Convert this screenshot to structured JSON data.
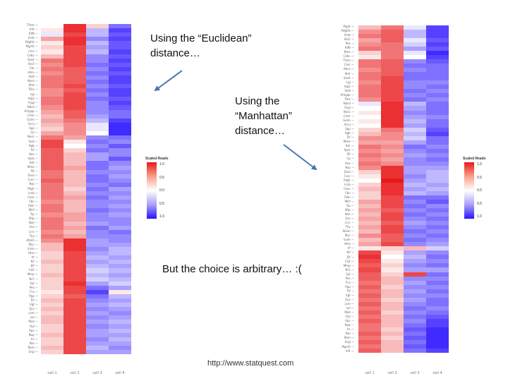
{
  "annotations": {
    "euclidean_line1": "Using the “Euclidean”",
    "euclidean_line2": "distance…",
    "manhattan_line1": "Using the",
    "manhattan_line2": "“Manhattan”",
    "manhattan_line3": "distance…",
    "arbitrary": "But the choice is arbitrary… :("
  },
  "source_url": "http://www.statquest.com",
  "legend": {
    "title": "Scaled Reads",
    "ticks": [
      "1.0",
      "0.5",
      "0.0",
      "0.5",
      "1.0"
    ]
  },
  "colors": {
    "high": "#e8191b",
    "mid": "#ffffff",
    "low": "#2a12ff"
  },
  "heatmaps": [
    {
      "name": "euclidean-heatmap",
      "column_labels": [
        "cell 1",
        "cell 2",
        "cell 3",
        "cell 4"
      ],
      "row_labels": [
        "Tfam",
        "Irf4",
        "Klf8",
        "Arsb",
        "Pdgfrb",
        "Mgst3",
        "Cmc",
        "Cdkn",
        "Sox4",
        "Bcl3",
        "Cbr",
        "Hmx",
        "Slc8",
        "Abca",
        "Wnt",
        "Tshz",
        "Lgi",
        "Alg3",
        "Pygl",
        "Hbcd",
        "Arhgap",
        "Cmtr",
        "Golm",
        "Kcnj",
        "Spp",
        "Cp",
        "Nesc",
        "Slc8",
        "Itgb",
        "Tcf",
        "Hox",
        "Aptx",
        "Kdr",
        "Mme",
        "Pif",
        "Dnal",
        "Cxcr",
        "Nrp",
        "Ptgfr",
        "Lmb",
        "Ceac",
        "Fbn",
        "Fbln",
        "Mtrf",
        "Trp",
        "Sftp",
        "Nxe",
        "Gss",
        "Lrrc",
        "Thy",
        "Ablim",
        "Myc",
        "Icam",
        "Htra",
        "Irf",
        "Kif",
        "Elf",
        "Cd2",
        "Mmp",
        "Nr1",
        "Syt",
        "Pex",
        "Tns",
        "Ppp",
        "Tcf",
        "Vgf",
        "Zyx",
        "Lsm",
        "Lpl",
        "Mxd",
        "Rpl",
        "Apc",
        "Nup",
        "Irs",
        "Pax",
        "Rbm",
        "Ergi"
      ],
      "matrix": [
        [
          0.0,
          0.9,
          0.2,
          -0.6
        ],
        [
          0.1,
          0.9,
          -0.3,
          -0.8
        ],
        [
          -0.1,
          0.8,
          -0.3,
          -0.7
        ],
        [
          0.4,
          0.9,
          -0.5,
          -0.8
        ],
        [
          0.1,
          0.9,
          -0.3,
          -0.7
        ],
        [
          0.2,
          0.8,
          -0.4,
          -0.7
        ],
        [
          0.1,
          0.8,
          -0.3,
          -0.8
        ],
        [
          0.3,
          0.8,
          -0.5,
          -0.7
        ],
        [
          0.6,
          0.8,
          -0.5,
          -0.8
        ],
        [
          0.5,
          0.8,
          -0.6,
          -0.7
        ],
        [
          0.6,
          0.7,
          -0.5,
          -0.8
        ],
        [
          0.5,
          0.7,
          -0.6,
          -0.7
        ],
        [
          0.6,
          0.7,
          -0.5,
          -0.8
        ],
        [
          0.6,
          0.7,
          -0.6,
          -0.8
        ],
        [
          0.6,
          0.8,
          -0.5,
          -0.7
        ],
        [
          0.5,
          0.7,
          -0.6,
          -0.8
        ],
        [
          0.5,
          0.8,
          -0.5,
          -0.8
        ],
        [
          0.6,
          0.8,
          -0.6,
          -0.7
        ],
        [
          0.6,
          0.8,
          -0.5,
          -0.8
        ],
        [
          0.5,
          0.8,
          -0.5,
          -0.7
        ],
        [
          0.4,
          0.7,
          -0.5,
          -0.6
        ],
        [
          0.3,
          0.7,
          -0.4,
          -0.6
        ],
        [
          0.4,
          0.6,
          -0.3,
          -0.8
        ],
        [
          0.3,
          0.5,
          -0.1,
          -0.9
        ],
        [
          0.2,
          0.5,
          -0.1,
          -0.9
        ],
        [
          0.4,
          0.5,
          0.0,
          -0.9
        ],
        [
          0.6,
          0.4,
          -0.5,
          -0.6
        ],
        [
          0.8,
          0.1,
          -0.6,
          -0.5
        ],
        [
          0.8,
          0.0,
          -0.5,
          -0.7
        ],
        [
          0.7,
          0.2,
          -0.6,
          -0.5
        ],
        [
          0.7,
          0.3,
          -0.4,
          -0.5
        ],
        [
          0.7,
          0.3,
          -0.4,
          -0.7
        ],
        [
          0.7,
          0.3,
          -0.6,
          -0.5
        ],
        [
          0.7,
          0.4,
          -0.6,
          -0.4
        ],
        [
          0.6,
          0.3,
          -0.5,
          -0.5
        ],
        [
          0.6,
          0.3,
          -0.6,
          -0.4
        ],
        [
          0.7,
          0.3,
          -0.6,
          -0.5
        ],
        [
          0.6,
          0.3,
          -0.5,
          -0.6
        ],
        [
          0.6,
          0.2,
          -0.6,
          -0.4
        ],
        [
          0.6,
          0.3,
          -0.5,
          -0.5
        ],
        [
          0.6,
          0.4,
          -0.6,
          -0.4
        ],
        [
          0.5,
          0.3,
          -0.5,
          -0.5
        ],
        [
          0.6,
          0.3,
          -0.5,
          -0.4
        ],
        [
          0.6,
          0.3,
          -0.6,
          -0.5
        ],
        [
          0.5,
          0.4,
          -0.5,
          -0.4
        ],
        [
          0.6,
          0.4,
          -0.5,
          -0.5
        ],
        [
          0.6,
          0.3,
          -0.4,
          -0.5
        ],
        [
          0.6,
          0.4,
          -0.6,
          -0.4
        ],
        [
          0.5,
          0.3,
          -0.5,
          -0.6
        ],
        [
          0.6,
          0.4,
          -0.5,
          -0.5
        ],
        [
          0.5,
          0.9,
          -0.4,
          -0.5
        ],
        [
          0.3,
          0.9,
          -0.4,
          -0.4
        ],
        [
          0.3,
          0.9,
          -0.5,
          -0.3
        ],
        [
          0.2,
          0.8,
          -0.4,
          -0.3
        ],
        [
          0.2,
          0.8,
          -0.3,
          -0.4
        ],
        [
          0.3,
          0.8,
          -0.4,
          -0.3
        ],
        [
          0.2,
          0.8,
          -0.3,
          -0.4
        ],
        [
          0.2,
          0.8,
          -0.2,
          -0.3
        ],
        [
          0.3,
          0.8,
          -0.3,
          -0.4
        ],
        [
          0.2,
          0.8,
          -0.2,
          -0.3
        ],
        [
          0.2,
          0.9,
          -0.4,
          -0.2
        ],
        [
          0.2,
          0.8,
          -0.6,
          -0.4
        ],
        [
          0.1,
          0.8,
          -0.8,
          0.1
        ],
        [
          0.2,
          0.7,
          -0.6,
          -0.3
        ],
        [
          0.3,
          0.8,
          -0.5,
          -0.4
        ],
        [
          0.2,
          0.8,
          -0.4,
          -0.3
        ],
        [
          0.3,
          0.8,
          -0.5,
          -0.4
        ],
        [
          0.2,
          0.8,
          -0.4,
          -0.5
        ],
        [
          0.3,
          0.8,
          -0.5,
          -0.4
        ],
        [
          0.3,
          0.8,
          -0.4,
          -0.3
        ],
        [
          0.2,
          0.8,
          -0.5,
          -0.4
        ],
        [
          0.2,
          0.8,
          -0.4,
          -0.3
        ],
        [
          0.3,
          0.8,
          -0.4,
          -0.4
        ],
        [
          0.2,
          0.8,
          -0.5,
          -0.3
        ],
        [
          0.2,
          0.8,
          -0.4,
          -0.4
        ],
        [
          0.3,
          0.8,
          -0.3,
          -0.5
        ],
        [
          0.2,
          0.8,
          -0.4,
          -0.4
        ]
      ]
    },
    {
      "name": "manhattan-heatmap",
      "column_labels": [
        "cell 1",
        "cell 2",
        "cell 3",
        "cell 4"
      ],
      "row_labels": [
        "Plgrb",
        "Pdgfrb",
        "Arsb",
        "Bcl2",
        "Pex",
        "Klf8",
        "Nmx",
        "Cdkn",
        "Tfam",
        "Cmc",
        "Abca",
        "Wnt",
        "Sox4",
        "Lgi",
        "Alg3",
        "Slc8",
        "Arhgap",
        "Tshz",
        "Hbcd",
        "Pygl",
        "Nesc",
        "Cmtr",
        "Golm",
        "Kcnj",
        "Spp",
        "Itgb",
        "Tcf",
        "Mme",
        "Kdr",
        "Aptx",
        "Pif",
        "Cp",
        "Hox",
        "Nrp",
        "Dnal",
        "Cxcr",
        "Ptgfr",
        "Lmb",
        "Ceac",
        "Fbn",
        "Fbln",
        "Mtrf",
        "Trp",
        "Sftp",
        "Nxe",
        "Gss",
        "Lrrc",
        "Thy",
        "Ablim",
        "Myc",
        "Icam",
        "Htra",
        "Irf",
        "Kif",
        "Elf",
        "Cd2",
        "Mmp",
        "Nr1",
        "Syt",
        "Pex",
        "Tns",
        "Ppp",
        "Tcf",
        "Vgf",
        "Zyx",
        "Lsm",
        "Lpl",
        "Mxd",
        "Rpl",
        "Apc",
        "Nup",
        "Irs",
        "Pax",
        "Rbm",
        "Ergi",
        "Mgst3",
        "Irf4"
      ],
      "matrix": [
        [
          0.3,
          0.6,
          -0.1,
          -0.8
        ],
        [
          0.5,
          0.7,
          -0.3,
          -0.8
        ],
        [
          0.6,
          0.7,
          -0.3,
          -0.8
        ],
        [
          0.4,
          0.7,
          -0.1,
          -0.7
        ],
        [
          0.5,
          0.6,
          -0.2,
          -0.8
        ],
        [
          0.6,
          0.6,
          -0.4,
          -0.7
        ],
        [
          0.2,
          0.6,
          -0.1,
          -0.9
        ],
        [
          0.1,
          0.6,
          0.0,
          -0.8
        ],
        [
          0.6,
          0.7,
          -0.5,
          -0.7
        ],
        [
          0.6,
          0.7,
          -0.6,
          -0.6
        ],
        [
          0.5,
          0.7,
          -0.5,
          -0.6
        ],
        [
          0.6,
          0.7,
          -0.6,
          -0.6
        ],
        [
          0.6,
          0.8,
          -0.6,
          -0.6
        ],
        [
          0.5,
          0.8,
          -0.5,
          -0.5
        ],
        [
          0.6,
          0.8,
          -0.5,
          -0.6
        ],
        [
          0.6,
          0.8,
          -0.6,
          -0.5
        ],
        [
          0.6,
          0.8,
          -0.5,
          -0.6
        ],
        [
          0.5,
          0.8,
          -0.6,
          -0.5
        ],
        [
          -0.1,
          0.9,
          -0.3,
          -0.6
        ],
        [
          0.0,
          0.9,
          -0.4,
          -0.6
        ],
        [
          0.1,
          0.9,
          -0.5,
          -0.6
        ],
        [
          0.0,
          0.9,
          -0.4,
          -0.5
        ],
        [
          0.1,
          0.9,
          -0.3,
          -0.6
        ],
        [
          0.0,
          0.9,
          -0.4,
          -0.6
        ],
        [
          0.2,
          0.6,
          -0.2,
          -0.7
        ],
        [
          0.3,
          0.5,
          -0.3,
          -0.8
        ],
        [
          0.5,
          0.5,
          -0.2,
          -0.6
        ],
        [
          0.4,
          0.4,
          -0.4,
          -0.6
        ],
        [
          0.6,
          0.5,
          -0.6,
          -0.5
        ],
        [
          0.5,
          0.4,
          -0.5,
          -0.6
        ],
        [
          0.6,
          0.5,
          -0.4,
          -0.5
        ],
        [
          0.5,
          0.4,
          -0.5,
          -0.6
        ],
        [
          0.6,
          0.5,
          -0.5,
          -0.5
        ],
        [
          0.5,
          0.9,
          -0.4,
          -0.4
        ],
        [
          0.2,
          0.9,
          -0.4,
          -0.3
        ],
        [
          0.1,
          0.9,
          -0.5,
          -0.3
        ],
        [
          0.0,
          1.0,
          -0.4,
          -0.3
        ],
        [
          0.2,
          0.9,
          -0.3,
          -0.4
        ],
        [
          0.3,
          0.9,
          -0.4,
          -0.3
        ],
        [
          0.2,
          0.9,
          -0.3,
          -0.4
        ],
        [
          0.2,
          0.8,
          -0.6,
          -0.6
        ],
        [
          0.4,
          0.8,
          -0.5,
          -0.7
        ],
        [
          0.3,
          0.8,
          -0.6,
          -0.5
        ],
        [
          0.4,
          0.7,
          -0.5,
          -0.6
        ],
        [
          0.3,
          0.8,
          -0.6,
          -0.5
        ],
        [
          0.4,
          0.8,
          -0.5,
          -0.6
        ],
        [
          0.3,
          0.7,
          -0.4,
          -0.5
        ],
        [
          0.4,
          0.8,
          -0.5,
          -0.6
        ],
        [
          0.3,
          0.8,
          -0.6,
          -0.5
        ],
        [
          0.5,
          0.7,
          -0.5,
          -0.6
        ],
        [
          0.3,
          0.7,
          -0.6,
          -0.5
        ],
        [
          0.4,
          0.8,
          -0.5,
          -0.4
        ],
        [
          0.1,
          0.2,
          0.3,
          -0.2
        ],
        [
          0.8,
          0.1,
          -0.4,
          -0.5
        ],
        [
          0.9,
          0.0,
          -0.3,
          -0.6
        ],
        [
          0.8,
          0.1,
          -0.4,
          -0.5
        ],
        [
          0.7,
          0.2,
          -0.5,
          -0.6
        ],
        [
          0.8,
          0.1,
          -0.4,
          -0.4
        ],
        [
          0.7,
          0.2,
          0.8,
          -0.6
        ],
        [
          0.7,
          0.3,
          -0.5,
          -0.5
        ],
        [
          0.6,
          0.3,
          -0.4,
          -0.6
        ],
        [
          0.7,
          0.2,
          -0.5,
          -0.5
        ],
        [
          0.6,
          0.3,
          -0.4,
          -0.6
        ],
        [
          0.7,
          0.3,
          -0.5,
          -0.5
        ],
        [
          0.6,
          0.2,
          -0.4,
          -0.6
        ],
        [
          0.7,
          0.3,
          -0.5,
          -0.6
        ],
        [
          0.6,
          0.3,
          -0.6,
          -0.5
        ],
        [
          0.7,
          0.2,
          -0.5,
          -0.6
        ],
        [
          0.6,
          0.3,
          -0.6,
          -0.7
        ],
        [
          0.7,
          0.3,
          -0.5,
          -0.8
        ],
        [
          0.6,
          0.3,
          -0.6,
          -0.8
        ],
        [
          0.6,
          0.2,
          -0.7,
          -0.9
        ],
        [
          0.7,
          0.3,
          -0.6,
          -0.9
        ],
        [
          0.6,
          0.2,
          -0.7,
          -0.9
        ],
        [
          0.7,
          0.3,
          -0.6,
          -0.9
        ],
        [
          0.6,
          0.3,
          -0.7,
          -0.9
        ],
        [
          0.7,
          0.3,
          -0.6,
          -0.8
        ]
      ]
    }
  ]
}
